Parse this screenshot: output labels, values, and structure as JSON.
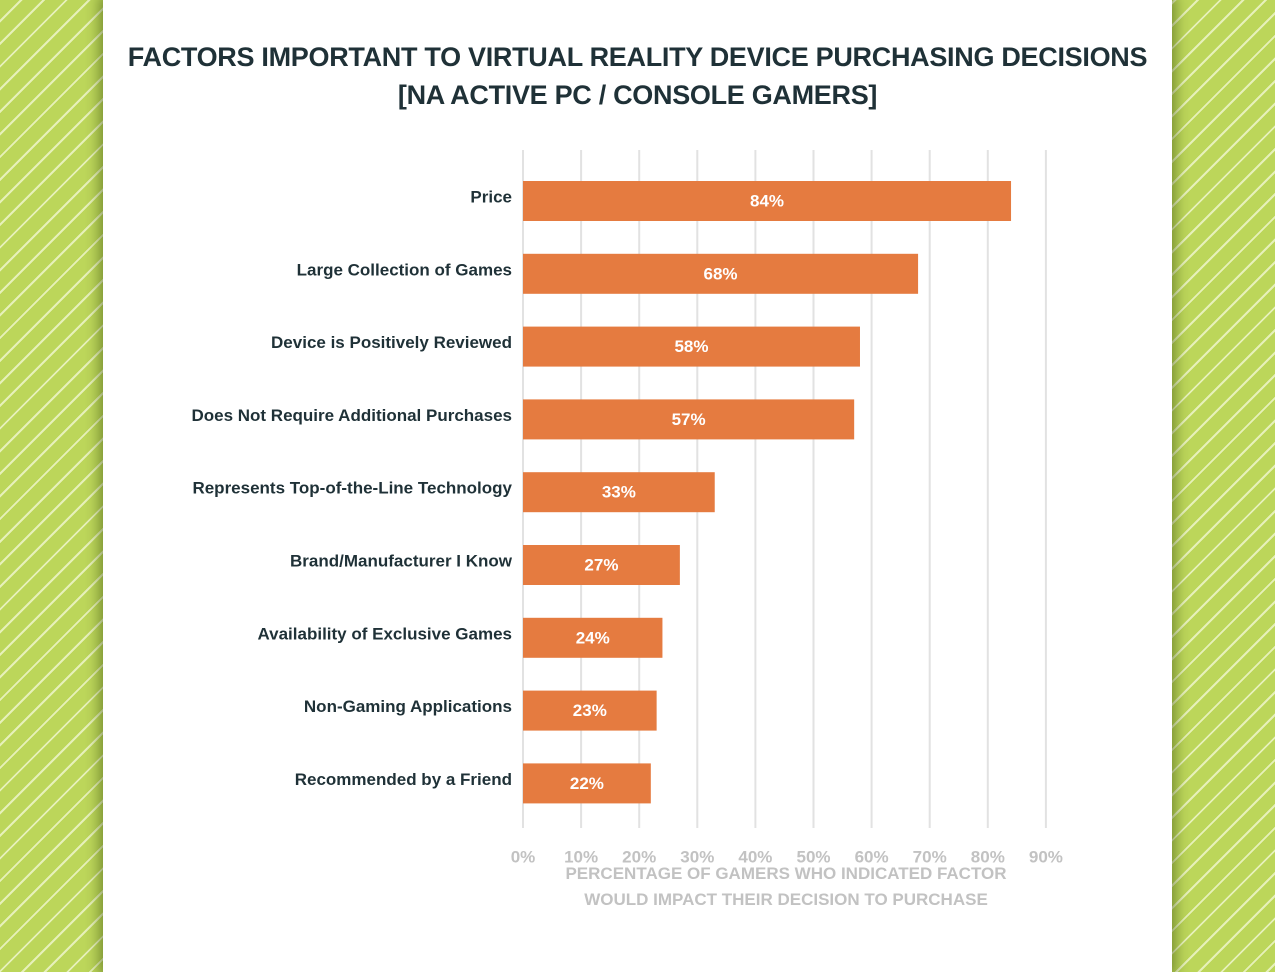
{
  "title_line1": "FACTORS IMPORTANT TO VIRTUAL REALITY DEVICE PURCHASING DECISIONS",
  "title_line2": "[NA ACTIVE PC / CONSOLE GAMERS]",
  "xlabel_line1": "PERCENTAGE OF GAMERS WHO INDICATED FACTOR",
  "xlabel_line2": "WOULD IMPACT THEIR DECISION TO PURCHASE",
  "colors": {
    "bar": "#e57b40",
    "bar_label": "#ffffff",
    "category_label": "#1f3137",
    "grid": "#e2e2e2",
    "tick_label": "#c2c2c2",
    "title": "#1f3137",
    "background": "#bcd65a"
  },
  "chart_data": {
    "type": "bar",
    "orientation": "horizontal",
    "title": "FACTORS IMPORTANT TO VIRTUAL REALITY DEVICE PURCHASING DECISIONS [NA ACTIVE PC / CONSOLE GAMERS]",
    "xlabel": "PERCENTAGE OF GAMERS WHO INDICATED FACTOR WOULD IMPACT THEIR DECISION TO PURCHASE",
    "ylabel": "",
    "categories": [
      "Price",
      "Large Collection of Games",
      "Device is Positively Reviewed",
      "Does Not Require Additional Purchases",
      "Represents Top-of-the-Line Technology",
      "Brand/Manufacturer I Know",
      "Availability of Exclusive Games",
      "Non-Gaming Applications",
      "Recommended by a Friend"
    ],
    "values": [
      84,
      68,
      58,
      57,
      33,
      27,
      24,
      23,
      22
    ],
    "data_labels": [
      "84%",
      "68%",
      "58%",
      "57%",
      "33%",
      "27%",
      "24%",
      "23%",
      "22%"
    ],
    "xlim": [
      0,
      90
    ],
    "ticks": [
      0,
      10,
      20,
      30,
      40,
      50,
      60,
      70,
      80,
      90
    ],
    "tick_labels": [
      "0%",
      "10%",
      "20%",
      "30%",
      "40%",
      "50%",
      "60%",
      "70%",
      "80%",
      "90%"
    ],
    "grid": true,
    "legend": "none"
  }
}
